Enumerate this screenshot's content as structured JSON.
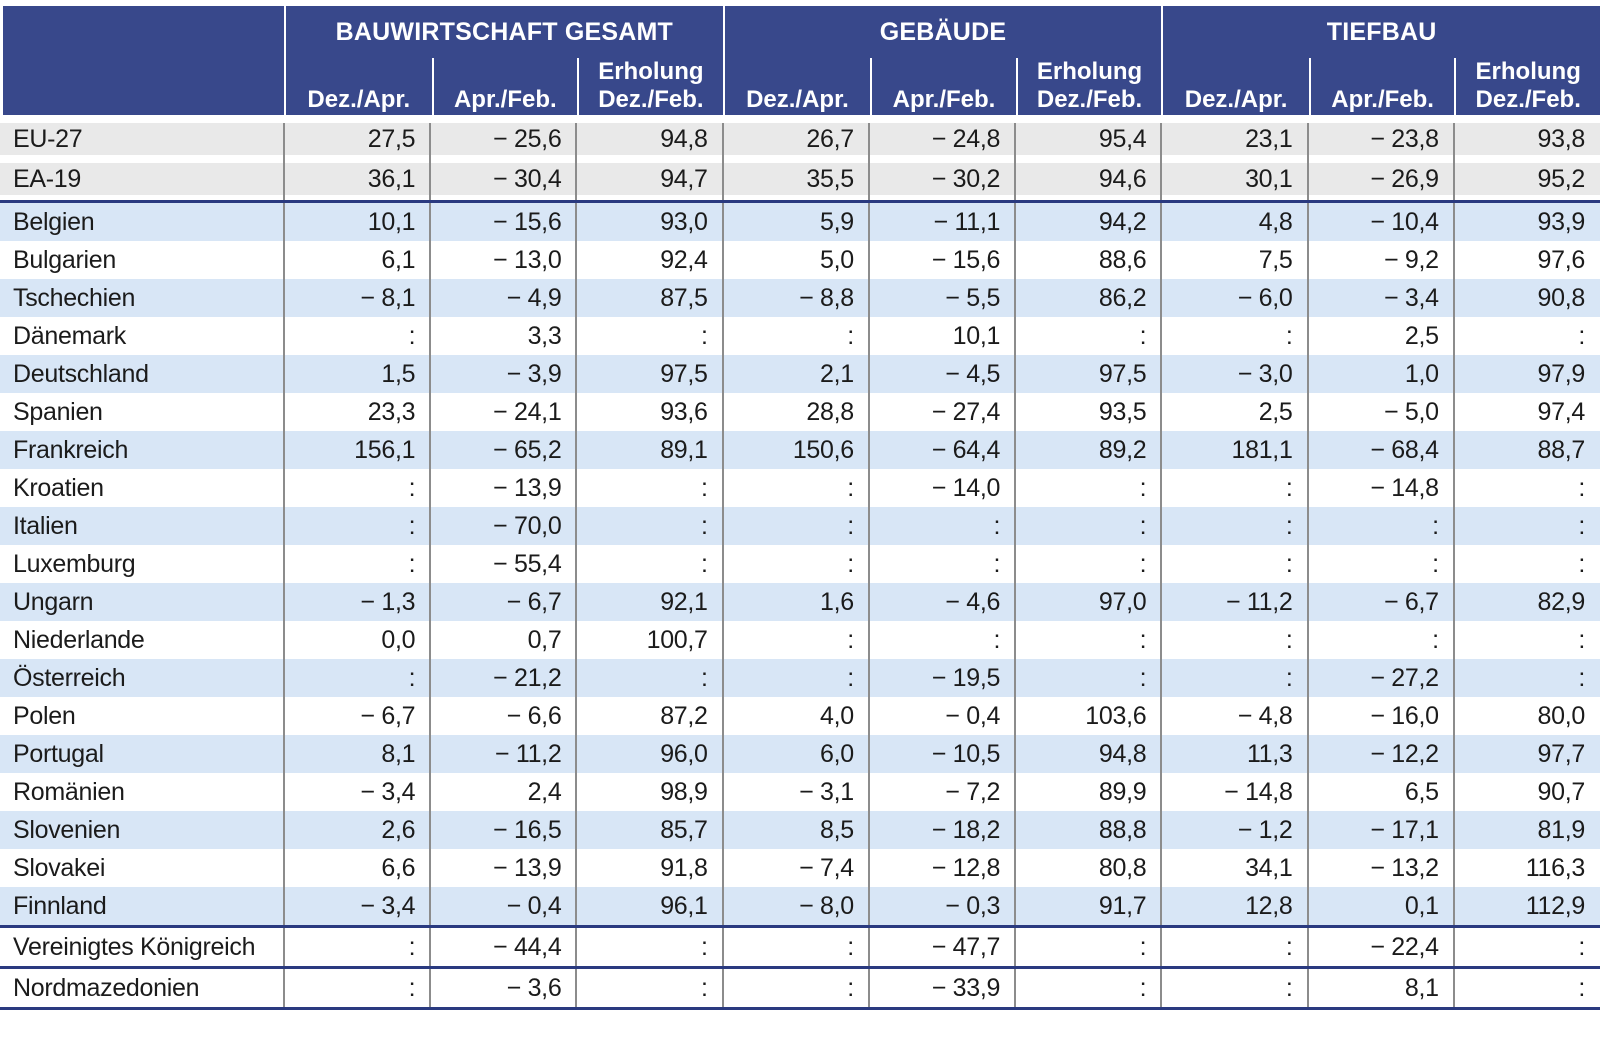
{
  "table": {
    "groups": [
      {
        "title": "BAUWIRTSCHAFT GESAMT",
        "recovery_label": "Erholung",
        "columns": [
          "Dez./Apr.",
          "Apr./Feb.",
          "Dez./Feb."
        ]
      },
      {
        "title": "GEBÄUDE",
        "recovery_label": "Erholung",
        "columns": [
          "Dez./Apr.",
          "Apr./Feb.",
          "Dez./Feb."
        ]
      },
      {
        "title": "TIEFBAU",
        "recovery_label": "Erholung",
        "columns": [
          "Dez./Apr.",
          "Apr./Feb.",
          "Dez./Feb."
        ]
      }
    ],
    "missing_value_symbol": ":",
    "rows": [
      {
        "label": "EU-27",
        "section": "eu-aggregate",
        "values": [
          "27,5",
          "− 25,6",
          "94,8",
          "26,7",
          "− 24,8",
          "95,4",
          "23,1",
          "− 23,8",
          "93,8"
        ]
      },
      {
        "label": "EA-19",
        "section": "eu-aggregate",
        "values": [
          "36,1",
          "− 30,4",
          "94,7",
          "35,5",
          "− 30,2",
          "94,6",
          "30,1",
          "− 26,9",
          "95,2"
        ]
      },
      {
        "label": "Belgien",
        "section": "eu-member",
        "values": [
          "10,1",
          "− 15,6",
          "93,0",
          "5,9",
          "− 11,1",
          "94,2",
          "4,8",
          "− 10,4",
          "93,9"
        ]
      },
      {
        "label": "Bulgarien",
        "section": "eu-member",
        "values": [
          "6,1",
          "− 13,0",
          "92,4",
          "5,0",
          "− 15,6",
          "88,6",
          "7,5",
          "− 9,2",
          "97,6"
        ]
      },
      {
        "label": "Tschechien",
        "section": "eu-member",
        "values": [
          "− 8,1",
          "− 4,9",
          "87,5",
          "− 8,8",
          "− 5,5",
          "86,2",
          "− 6,0",
          "− 3,4",
          "90,8"
        ]
      },
      {
        "label": "Dänemark",
        "section": "eu-member",
        "values": [
          ":",
          "3,3",
          ":",
          ":",
          "10,1",
          ":",
          ":",
          "2,5",
          ":"
        ]
      },
      {
        "label": "Deutschland",
        "section": "eu-member",
        "values": [
          "1,5",
          "− 3,9",
          "97,5",
          "2,1",
          "− 4,5",
          "97,5",
          "− 3,0",
          "1,0",
          "97,9"
        ]
      },
      {
        "label": "Spanien",
        "section": "eu-member",
        "values": [
          "23,3",
          "− 24,1",
          "93,6",
          "28,8",
          "− 27,4",
          "93,5",
          "2,5",
          "− 5,0",
          "97,4"
        ]
      },
      {
        "label": "Frankreich",
        "section": "eu-member",
        "values": [
          "156,1",
          "− 65,2",
          "89,1",
          "150,6",
          "− 64,4",
          "89,2",
          "181,1",
          "− 68,4",
          "88,7"
        ]
      },
      {
        "label": "Kroatien",
        "section": "eu-member",
        "values": [
          ":",
          "− 13,9",
          ":",
          ":",
          "− 14,0",
          ":",
          ":",
          "− 14,8",
          ":"
        ]
      },
      {
        "label": "Italien",
        "section": "eu-member",
        "values": [
          ":",
          "− 70,0",
          ":",
          ":",
          ":",
          ":",
          ":",
          ":",
          ":"
        ]
      },
      {
        "label": "Luxemburg",
        "section": "eu-member",
        "values": [
          ":",
          "− 55,4",
          ":",
          ":",
          ":",
          ":",
          ":",
          ":",
          ":"
        ]
      },
      {
        "label": "Ungarn",
        "section": "eu-member",
        "values": [
          "− 1,3",
          "− 6,7",
          "92,1",
          "1,6",
          "− 4,6",
          "97,0",
          "− 11,2",
          "− 6,7",
          "82,9"
        ]
      },
      {
        "label": "Niederlande",
        "section": "eu-member",
        "values": [
          "0,0",
          "0,7",
          "100,7",
          ":",
          ":",
          ":",
          ":",
          ":",
          ":"
        ]
      },
      {
        "label": "Österreich",
        "section": "eu-member",
        "values": [
          ":",
          "− 21,2",
          ":",
          ":",
          "− 19,5",
          ":",
          ":",
          "− 27,2",
          ":"
        ]
      },
      {
        "label": "Polen",
        "section": "eu-member",
        "values": [
          "− 6,7",
          "− 6,6",
          "87,2",
          "4,0",
          "− 0,4",
          "103,6",
          "− 4,8",
          "− 16,0",
          "80,0"
        ]
      },
      {
        "label": "Portugal",
        "section": "eu-member",
        "values": [
          "8,1",
          "− 11,2",
          "96,0",
          "6,0",
          "− 10,5",
          "94,8",
          "11,3",
          "− 12,2",
          "97,7"
        ]
      },
      {
        "label": "Romänien",
        "section": "eu-member",
        "values": [
          "− 3,4",
          "2,4",
          "98,9",
          "− 3,1",
          "− 7,2",
          "89,9",
          "− 14,8",
          "6,5",
          "90,7"
        ]
      },
      {
        "label": "Slovenien",
        "section": "eu-member",
        "values": [
          "2,6",
          "− 16,5",
          "85,7",
          "8,5",
          "− 18,2",
          "88,8",
          "− 1,2",
          "− 17,1",
          "81,9"
        ]
      },
      {
        "label": "Slovakei",
        "section": "eu-member",
        "values": [
          "6,6",
          "− 13,9",
          "91,8",
          "− 7,4",
          "− 12,8",
          "80,8",
          "34,1",
          "− 13,2",
          "116,3"
        ]
      },
      {
        "label": "Finnland",
        "section": "eu-member",
        "values": [
          "− 3,4",
          "− 0,4",
          "96,1",
          "− 8,0",
          "− 0,3",
          "91,7",
          "12,8",
          "0,1",
          "112,9"
        ]
      },
      {
        "label": "Vereinigtes Königreich",
        "section": "uk",
        "values": [
          ":",
          "− 44,4",
          ":",
          ":",
          "− 47,7",
          ":",
          ":",
          "− 22,4",
          ":"
        ]
      },
      {
        "label": "Nordmazedonien",
        "section": "non-eu",
        "values": [
          ":",
          "− 3,6",
          ":",
          ":",
          "− 33,9",
          ":",
          ":",
          "8,1",
          ":"
        ]
      }
    ]
  },
  "colors": {
    "header_bg": "#38488b",
    "separator_line": "#2a3a80",
    "stripe_blue": "#d8e6f6",
    "stripe_gray": "#e9e9e9",
    "column_divider": "#8c8c8c"
  }
}
